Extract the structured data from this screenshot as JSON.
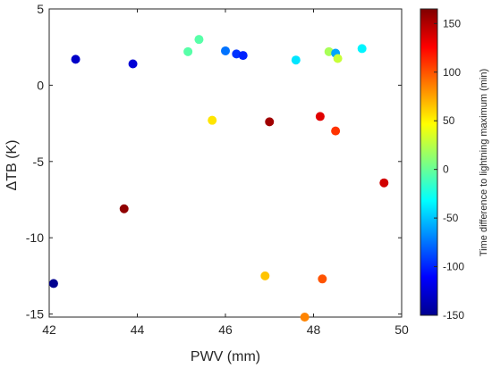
{
  "chart_data": {
    "type": "scatter",
    "xlabel": "PWV (mm)",
    "ylabel": "ΔTB (K)",
    "xlim": [
      42,
      50
    ],
    "ylim": [
      -15.2,
      5
    ],
    "x_ticks": [
      42,
      44,
      46,
      48,
      50
    ],
    "y_ticks": [
      5,
      0,
      -5,
      -10,
      -15
    ],
    "grid": false,
    "colorbar": {
      "label": "Time difference to lightning maximum (min)",
      "range": [
        -150,
        165
      ],
      "ticks": [
        150,
        100,
        50,
        0,
        -50,
        -100,
        -150
      ],
      "colormap": "jet"
    },
    "points": [
      {
        "x": 42.1,
        "y": -13.0,
        "c": -150
      },
      {
        "x": 42.6,
        "y": 1.7,
        "c": -130
      },
      {
        "x": 43.7,
        "y": -8.1,
        "c": 160
      },
      {
        "x": 43.9,
        "y": 1.4,
        "c": -125
      },
      {
        "x": 45.15,
        "y": 2.2,
        "c": -5
      },
      {
        "x": 45.4,
        "y": 3.0,
        "c": -5
      },
      {
        "x": 45.7,
        "y": -2.3,
        "c": 55
      },
      {
        "x": 46.0,
        "y": 2.25,
        "c": -75
      },
      {
        "x": 46.25,
        "y": 2.05,
        "c": -95
      },
      {
        "x": 46.4,
        "y": 1.95,
        "c": -100
      },
      {
        "x": 46.9,
        "y": -12.5,
        "c": 65
      },
      {
        "x": 47.0,
        "y": -2.4,
        "c": 155
      },
      {
        "x": 47.6,
        "y": 1.65,
        "c": -40
      },
      {
        "x": 47.8,
        "y": -15.2,
        "c": 85
      },
      {
        "x": 48.15,
        "y": -2.05,
        "c": 135
      },
      {
        "x": 48.2,
        "y": -12.7,
        "c": 100
      },
      {
        "x": 48.35,
        "y": 2.2,
        "c": 20
      },
      {
        "x": 48.5,
        "y": 2.1,
        "c": -60
      },
      {
        "x": 48.5,
        "y": -3.0,
        "c": 110
      },
      {
        "x": 48.55,
        "y": 1.75,
        "c": 30
      },
      {
        "x": 49.1,
        "y": 2.4,
        "c": -35
      },
      {
        "x": 49.6,
        "y": -6.4,
        "c": 140
      }
    ]
  }
}
